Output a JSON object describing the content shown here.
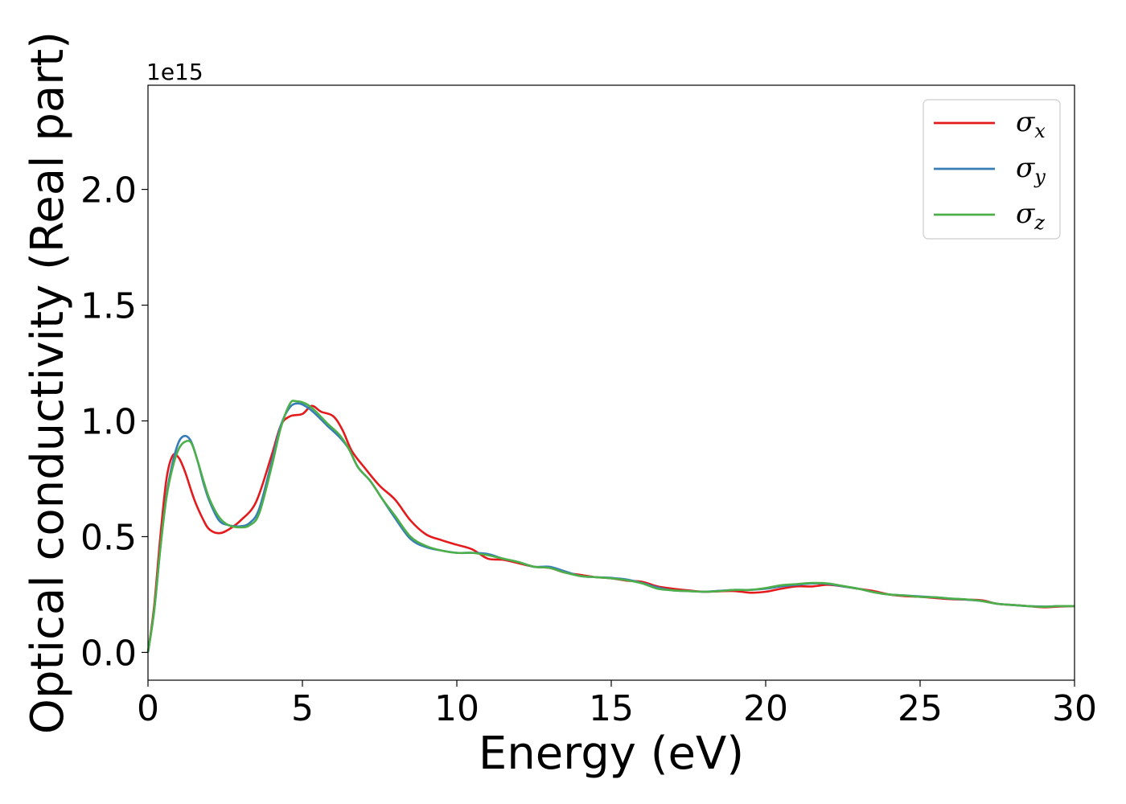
{
  "chart_data": {
    "type": "line",
    "title": "",
    "xlabel": "Energy (eV)",
    "ylabel": "Optical conductivity (Real part)",
    "y_offset_text": "1e15",
    "xlim": [
      0,
      30
    ],
    "ylim": [
      -0.12,
      2.45
    ],
    "x_ticks": [
      0,
      5,
      10,
      15,
      20,
      25,
      30
    ],
    "x_tick_labels": [
      "0",
      "5",
      "10",
      "15",
      "20",
      "25",
      "30"
    ],
    "y_ticks": [
      0.0,
      0.5,
      1.0,
      1.5,
      2.0
    ],
    "y_tick_labels": [
      "0.0",
      "0.5",
      "1.0",
      "1.5",
      "2.0"
    ],
    "grid": false,
    "legend_position": "top-right",
    "series": [
      {
        "name": "σx",
        "legend_symbol": "σ",
        "legend_subscript": "x",
        "color": "#e41a1c",
        "points": [
          [
            0,
            0
          ],
          [
            0.2,
            0.2
          ],
          [
            0.4,
            0.5
          ],
          [
            0.6,
            0.75
          ],
          [
            0.8,
            0.85
          ],
          [
            1.0,
            0.84
          ],
          [
            1.2,
            0.78
          ],
          [
            1.5,
            0.66
          ],
          [
            1.8,
            0.57
          ],
          [
            2.0,
            0.53
          ],
          [
            2.3,
            0.515
          ],
          [
            2.6,
            0.53
          ],
          [
            3.0,
            0.57
          ],
          [
            3.5,
            0.65
          ],
          [
            4.0,
            0.85
          ],
          [
            4.3,
            0.98
          ],
          [
            4.6,
            1.02
          ],
          [
            5.0,
            1.03
          ],
          [
            5.3,
            1.065
          ],
          [
            5.6,
            1.04
          ],
          [
            6.0,
            1.02
          ],
          [
            6.3,
            0.96
          ],
          [
            6.6,
            0.87
          ],
          [
            7.0,
            0.8
          ],
          [
            7.5,
            0.72
          ],
          [
            8.0,
            0.66
          ],
          [
            8.5,
            0.57
          ],
          [
            9.0,
            0.51
          ],
          [
            9.5,
            0.485
          ],
          [
            10.0,
            0.465
          ],
          [
            10.5,
            0.445
          ],
          [
            11.0,
            0.405
          ],
          [
            11.5,
            0.4
          ],
          [
            12.0,
            0.385
          ],
          [
            12.5,
            0.37
          ],
          [
            13.0,
            0.365
          ],
          [
            13.5,
            0.345
          ],
          [
            14.0,
            0.335
          ],
          [
            14.5,
            0.325
          ],
          [
            15.0,
            0.32
          ],
          [
            15.5,
            0.31
          ],
          [
            16.0,
            0.305
          ],
          [
            16.5,
            0.285
          ],
          [
            17.0,
            0.275
          ],
          [
            17.5,
            0.268
          ],
          [
            18.0,
            0.262
          ],
          [
            18.5,
            0.264
          ],
          [
            19.0,
            0.265
          ],
          [
            19.5,
            0.258
          ],
          [
            20.0,
            0.262
          ],
          [
            20.5,
            0.275
          ],
          [
            21.0,
            0.285
          ],
          [
            21.5,
            0.285
          ],
          [
            22.0,
            0.292
          ],
          [
            22.5,
            0.285
          ],
          [
            23.0,
            0.275
          ],
          [
            23.5,
            0.265
          ],
          [
            24.0,
            0.25
          ],
          [
            24.5,
            0.243
          ],
          [
            25.0,
            0.24
          ],
          [
            25.5,
            0.235
          ],
          [
            26.0,
            0.23
          ],
          [
            26.5,
            0.228
          ],
          [
            27.0,
            0.225
          ],
          [
            27.5,
            0.21
          ],
          [
            28.0,
            0.205
          ],
          [
            28.5,
            0.2
          ],
          [
            29.0,
            0.195
          ],
          [
            29.5,
            0.198
          ],
          [
            30.0,
            0.2
          ]
        ]
      },
      {
        "name": "σy",
        "legend_symbol": "σ",
        "legend_subscript": "y",
        "color": "#377eb8",
        "points": [
          [
            0,
            0
          ],
          [
            0.2,
            0.18
          ],
          [
            0.4,
            0.45
          ],
          [
            0.6,
            0.68
          ],
          [
            0.8,
            0.82
          ],
          [
            1.0,
            0.91
          ],
          [
            1.2,
            0.935
          ],
          [
            1.4,
            0.91
          ],
          [
            1.6,
            0.83
          ],
          [
            1.8,
            0.73
          ],
          [
            2.0,
            0.65
          ],
          [
            2.3,
            0.57
          ],
          [
            2.6,
            0.55
          ],
          [
            3.0,
            0.545
          ],
          [
            3.3,
            0.56
          ],
          [
            3.6,
            0.62
          ],
          [
            4.0,
            0.82
          ],
          [
            4.3,
            0.98
          ],
          [
            4.6,
            1.06
          ],
          [
            4.9,
            1.075
          ],
          [
            5.2,
            1.055
          ],
          [
            5.5,
            1.02
          ],
          [
            5.8,
            0.98
          ],
          [
            6.2,
            0.93
          ],
          [
            6.5,
            0.88
          ],
          [
            6.8,
            0.8
          ],
          [
            7.2,
            0.74
          ],
          [
            7.6,
            0.66
          ],
          [
            8.0,
            0.58
          ],
          [
            8.5,
            0.49
          ],
          [
            9.0,
            0.455
          ],
          [
            9.5,
            0.44
          ],
          [
            10.0,
            0.43
          ],
          [
            10.5,
            0.43
          ],
          [
            11.0,
            0.425
          ],
          [
            11.5,
            0.405
          ],
          [
            12.0,
            0.39
          ],
          [
            12.5,
            0.37
          ],
          [
            13.0,
            0.37
          ],
          [
            13.5,
            0.35
          ],
          [
            14.0,
            0.33
          ],
          [
            14.5,
            0.325
          ],
          [
            15.0,
            0.322
          ],
          [
            15.5,
            0.315
          ],
          [
            16.0,
            0.3
          ],
          [
            16.5,
            0.28
          ],
          [
            17.0,
            0.268
          ],
          [
            17.5,
            0.265
          ],
          [
            18.0,
            0.262
          ],
          [
            18.5,
            0.266
          ],
          [
            19.0,
            0.27
          ],
          [
            19.5,
            0.27
          ],
          [
            20.0,
            0.275
          ],
          [
            20.5,
            0.285
          ],
          [
            21.0,
            0.292
          ],
          [
            21.5,
            0.298
          ],
          [
            22.0,
            0.296
          ],
          [
            22.5,
            0.285
          ],
          [
            23.0,
            0.275
          ],
          [
            23.5,
            0.26
          ],
          [
            24.0,
            0.25
          ],
          [
            24.5,
            0.246
          ],
          [
            25.0,
            0.242
          ],
          [
            25.5,
            0.238
          ],
          [
            26.0,
            0.232
          ],
          [
            26.5,
            0.228
          ],
          [
            27.0,
            0.222
          ],
          [
            27.5,
            0.21
          ],
          [
            28.0,
            0.205
          ],
          [
            28.5,
            0.2
          ],
          [
            29.0,
            0.198
          ],
          [
            29.5,
            0.2
          ],
          [
            30.0,
            0.2
          ]
        ]
      },
      {
        "name": "σz",
        "legend_symbol": "σ",
        "legend_subscript": "z",
        "color": "#4daf4a",
        "points": [
          [
            0,
            0
          ],
          [
            0.2,
            0.18
          ],
          [
            0.4,
            0.45
          ],
          [
            0.6,
            0.67
          ],
          [
            0.8,
            0.8
          ],
          [
            1.0,
            0.88
          ],
          [
            1.2,
            0.91
          ],
          [
            1.4,
            0.905
          ],
          [
            1.6,
            0.83
          ],
          [
            1.8,
            0.74
          ],
          [
            2.0,
            0.66
          ],
          [
            2.3,
            0.585
          ],
          [
            2.6,
            0.55
          ],
          [
            3.0,
            0.54
          ],
          [
            3.3,
            0.55
          ],
          [
            3.6,
            0.6
          ],
          [
            4.0,
            0.8
          ],
          [
            4.3,
            0.97
          ],
          [
            4.6,
            1.075
          ],
          [
            4.8,
            1.085
          ],
          [
            5.1,
            1.075
          ],
          [
            5.4,
            1.045
          ],
          [
            5.8,
            0.99
          ],
          [
            6.2,
            0.94
          ],
          [
            6.5,
            0.88
          ],
          [
            6.8,
            0.8
          ],
          [
            7.2,
            0.74
          ],
          [
            7.6,
            0.66
          ],
          [
            8.0,
            0.59
          ],
          [
            8.5,
            0.5
          ],
          [
            9.0,
            0.46
          ],
          [
            9.5,
            0.44
          ],
          [
            10.0,
            0.43
          ],
          [
            10.5,
            0.43
          ],
          [
            11.0,
            0.42
          ],
          [
            11.5,
            0.405
          ],
          [
            12.0,
            0.39
          ],
          [
            12.5,
            0.37
          ],
          [
            13.0,
            0.365
          ],
          [
            13.5,
            0.345
          ],
          [
            14.0,
            0.33
          ],
          [
            14.5,
            0.325
          ],
          [
            15.0,
            0.32
          ],
          [
            15.5,
            0.312
          ],
          [
            16.0,
            0.298
          ],
          [
            16.5,
            0.275
          ],
          [
            17.0,
            0.268
          ],
          [
            17.5,
            0.265
          ],
          [
            18.0,
            0.262
          ],
          [
            18.5,
            0.265
          ],
          [
            19.0,
            0.27
          ],
          [
            19.5,
            0.27
          ],
          [
            20.0,
            0.278
          ],
          [
            20.5,
            0.29
          ],
          [
            21.0,
            0.295
          ],
          [
            21.5,
            0.3
          ],
          [
            22.0,
            0.298
          ],
          [
            22.5,
            0.287
          ],
          [
            23.0,
            0.275
          ],
          [
            23.5,
            0.26
          ],
          [
            24.0,
            0.25
          ],
          [
            24.5,
            0.246
          ],
          [
            25.0,
            0.24
          ],
          [
            25.5,
            0.238
          ],
          [
            26.0,
            0.233
          ],
          [
            26.5,
            0.229
          ],
          [
            27.0,
            0.222
          ],
          [
            27.5,
            0.21
          ],
          [
            28.0,
            0.205
          ],
          [
            28.5,
            0.2
          ],
          [
            29.0,
            0.197
          ],
          [
            29.5,
            0.2
          ],
          [
            30.0,
            0.2
          ]
        ]
      }
    ]
  }
}
